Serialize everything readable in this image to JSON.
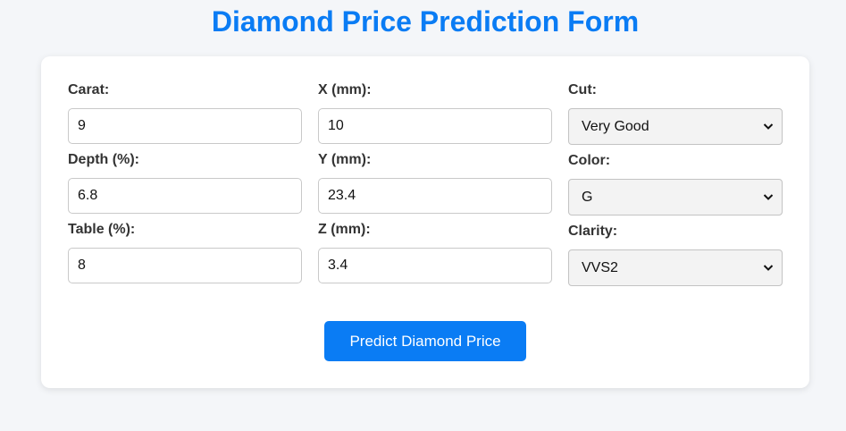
{
  "page": {
    "title": "Diamond Price Prediction Form"
  },
  "form": {
    "fields": [
      {
        "label": "Carat:",
        "value": "9"
      },
      {
        "label": "Depth (%):",
        "value": "6.8"
      },
      {
        "label": "Table (%):",
        "value": "8"
      },
      {
        "label": "X (mm):",
        "value": "10"
      },
      {
        "label": "Y (mm):",
        "value": "23.4"
      },
      {
        "label": "Z (mm):",
        "value": "3.4"
      }
    ],
    "selects": [
      {
        "label": "Cut:",
        "value": "Very Good"
      },
      {
        "label": "Color:",
        "value": "G"
      },
      {
        "label": "Clarity:",
        "value": "VVS2"
      }
    ],
    "submit_label": "Predict Diamond Price"
  },
  "colors": {
    "accent": "#0a7cf4",
    "background": "#f4f6f9",
    "card": "#ffffff"
  },
  "icons": {
    "select_arrow": "chevron-down-icon"
  }
}
